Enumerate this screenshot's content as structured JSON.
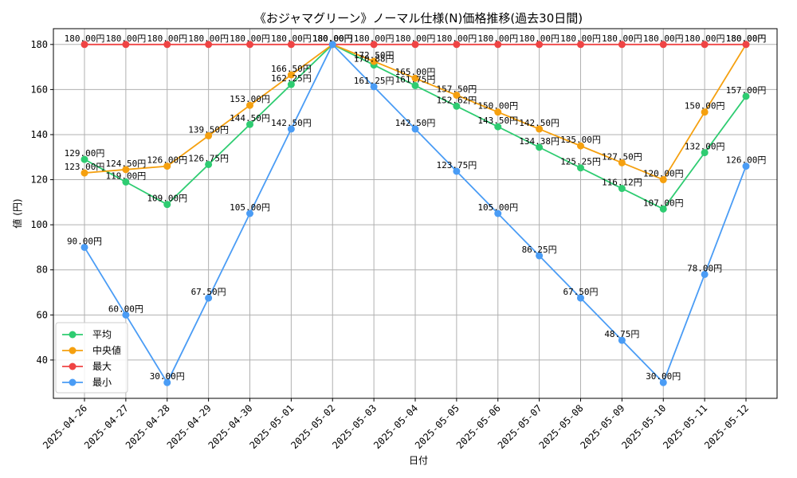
{
  "chart_data": {
    "type": "line",
    "title": "《おジャマグリーン》ノーマル仕様(N)価格推移(過去30日間)",
    "xlabel": "日付",
    "ylabel": "値 (円)",
    "ylim": [
      23,
      187
    ],
    "yticks": [
      40,
      60,
      80,
      100,
      120,
      140,
      160,
      180
    ],
    "grid": true,
    "legend_position": "lower-left",
    "value_suffix": "円",
    "categories": [
      "2025-04-26",
      "2025-04-27",
      "2025-04-28",
      "2025-04-29",
      "2025-04-30",
      "2025-05-01",
      "2025-05-02",
      "2025-05-03",
      "2025-05-04",
      "2025-05-05",
      "2025-05-06",
      "2025-05-07",
      "2025-05-08",
      "2025-05-09",
      "2025-05-10",
      "2025-05-11",
      "2025-05-12"
    ],
    "series": [
      {
        "name": "平均",
        "color": "#2ecc71",
        "values": [
          129.0,
          119.0,
          109.0,
          126.75,
          144.5,
          162.25,
          180.0,
          170.88,
          161.75,
          152.62,
          143.5,
          134.38,
          125.25,
          116.12,
          107.0,
          132.0,
          157.0
        ]
      },
      {
        "name": "中央値",
        "color": "#f5a00f",
        "values": [
          123.0,
          124.5,
          126.0,
          139.5,
          153.0,
          166.5,
          180.0,
          172.5,
          165.0,
          157.5,
          150.0,
          142.5,
          135.0,
          127.5,
          120.0,
          150.0,
          180.0
        ]
      },
      {
        "name": "最大",
        "color": "#ef4444",
        "values": [
          180.0,
          180.0,
          180.0,
          180.0,
          180.0,
          180.0,
          180.0,
          180.0,
          180.0,
          180.0,
          180.0,
          180.0,
          180.0,
          180.0,
          180.0,
          180.0,
          180.0
        ]
      },
      {
        "name": "最小",
        "color": "#4a9cf5",
        "values": [
          90.0,
          60.0,
          30.0,
          67.5,
          105.0,
          142.5,
          180.0,
          161.25,
          142.5,
          123.75,
          105.0,
          86.25,
          67.5,
          48.75,
          30.0,
          78.0,
          126.0
        ]
      }
    ]
  }
}
